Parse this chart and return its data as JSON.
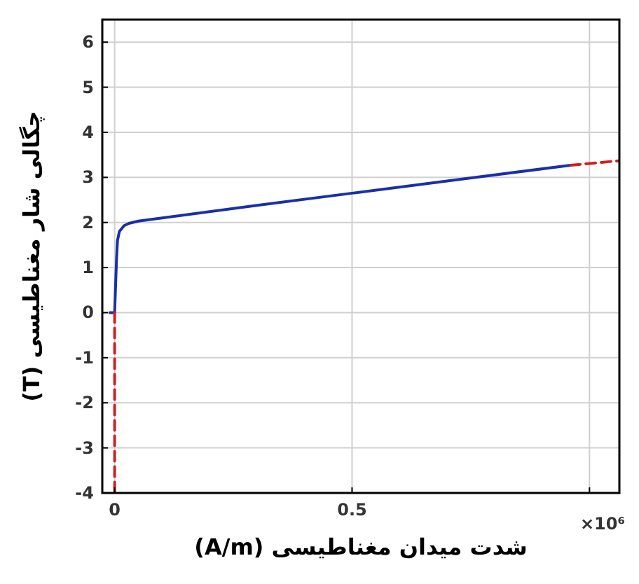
{
  "chart_data": {
    "type": "line",
    "xlabel": "شدت میدان مغناطیسی (A/m)",
    "ylabel": "چگالی شار مغناطیسی (T)",
    "xlim": [
      -0.026,
      1.063
    ],
    "ylim": [
      -4,
      6.5
    ],
    "xticks": [
      0,
      0.5,
      {
        "value": 1,
        "label": null
      }
    ],
    "annotations": [
      "×10⁶"
    ],
    "yticks": [
      -4,
      -3,
      -2,
      -1,
      0,
      1,
      2,
      3,
      4,
      5,
      6
    ],
    "grid": true,
    "series": [
      {
        "color": "#1a2fa8",
        "line_style": "solid",
        "x": [
          -0.01,
          0,
          0.002,
          0.004,
          0.006,
          0.01,
          0.02,
          0.03,
          0.05,
          0.1,
          0.3,
          0.5,
          0.7,
          0.96
        ],
        "values": [
          0,
          0,
          0.6,
          1.2,
          1.6,
          1.8,
          1.93,
          1.98,
          2.03,
          2.1,
          2.38,
          2.65,
          2.92,
          3.27
        ]
      },
      {
        "color": "#d02020",
        "line_style": "dashed",
        "x": [
          0,
          0,
          null,
          0.96,
          1.063
        ],
        "values": [
          0,
          -4,
          null,
          3.27,
          3.37
        ]
      }
    ]
  }
}
